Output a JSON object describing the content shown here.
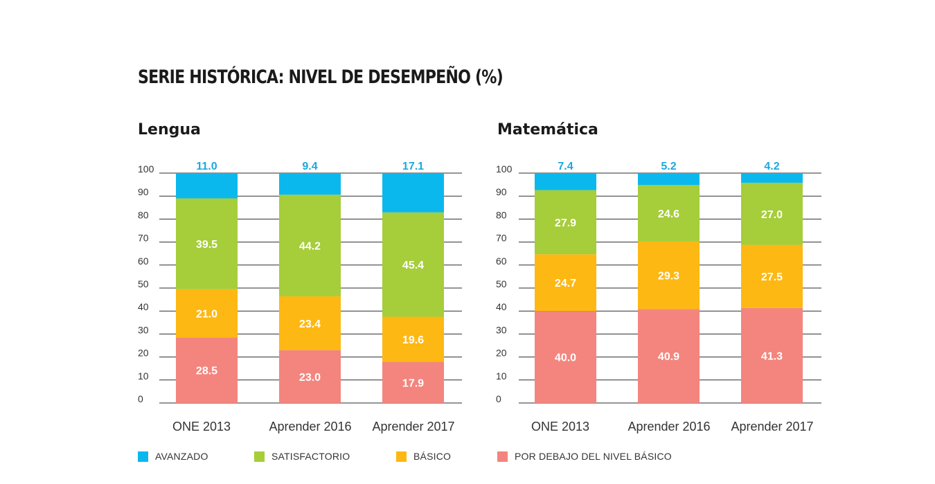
{
  "title": "SERIE HISTÓRICA: NIVEL DE DESEMPEÑO (%)",
  "colors": {
    "avanzado": "#0bb8ee",
    "satisfactorio": "#a6cd3a",
    "basico": "#fdb813",
    "por_debajo": "#f3857e",
    "top_label": "#1ba8df"
  },
  "legend": [
    {
      "name": "AVANZADO",
      "color": "#0bb8ee"
    },
    {
      "name": "SATISFACTORIO",
      "color": "#a6cd3a"
    },
    {
      "name": "BÁSICO",
      "color": "#fdb813"
    },
    {
      "name": "POR DEBAJO DEL NIVEL BÁSICO",
      "color": "#f3857e"
    }
  ],
  "chart_data": [
    {
      "type": "bar",
      "stacked": true,
      "title": "Lengua",
      "categories": [
        "ONE 2013",
        "Aprender 2016",
        "Aprender 2017"
      ],
      "ylim": [
        0,
        100
      ],
      "yticks": [
        0,
        10,
        20,
        30,
        40,
        50,
        60,
        70,
        80,
        90,
        100
      ],
      "series": [
        {
          "name": "POR DEBAJO DEL NIVEL BÁSICO",
          "values": [
            28.5,
            23.0,
            17.9
          ]
        },
        {
          "name": "BÁSICO",
          "values": [
            21.0,
            23.4,
            19.6
          ]
        },
        {
          "name": "SATISFACTORIO",
          "values": [
            39.5,
            44.2,
            45.4
          ]
        },
        {
          "name": "AVANZADO",
          "values": [
            11.0,
            9.4,
            17.1
          ]
        }
      ]
    },
    {
      "type": "bar",
      "stacked": true,
      "title": "Matemática",
      "categories": [
        "ONE 2013",
        "Aprender 2016",
        "Aprender 2017"
      ],
      "ylim": [
        0,
        100
      ],
      "yticks": [
        0,
        10,
        20,
        30,
        40,
        50,
        60,
        70,
        80,
        90,
        100
      ],
      "series": [
        {
          "name": "POR DEBAJO DEL NIVEL BÁSICO",
          "values": [
            40.0,
            40.9,
            41.3
          ]
        },
        {
          "name": "BÁSICO",
          "values": [
            24.7,
            29.3,
            27.5
          ]
        },
        {
          "name": "SATISFACTORIO",
          "values": [
            27.9,
            24.6,
            27.0
          ]
        },
        {
          "name": "AVANZADO",
          "values": [
            7.4,
            5.2,
            4.2
          ]
        }
      ]
    }
  ]
}
